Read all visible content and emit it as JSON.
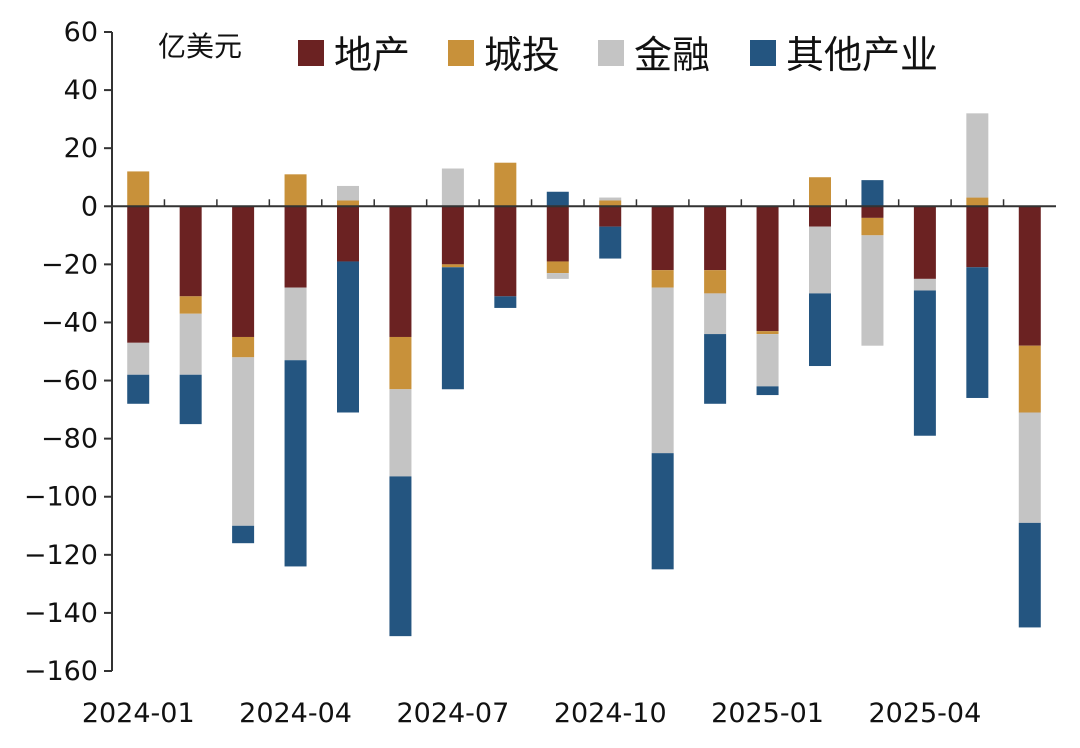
{
  "chart_data": {
    "type": "bar",
    "stacked": true,
    "unit_label": "亿美元",
    "x_tick_labels": [
      "2024-01",
      "2024-04",
      "2024-07",
      "2024-10",
      "2025-01",
      "2025-04"
    ],
    "categories": [
      "2024-01",
      "2024-02",
      "2024-03",
      "2024-04",
      "2024-05",
      "2024-06",
      "2024-07",
      "2024-08",
      "2024-09",
      "2024-10",
      "2024-11",
      "2024-12",
      "2025-01",
      "2025-02",
      "2025-03",
      "2025-04",
      "2025-05",
      "2025-06"
    ],
    "ylim": [
      -160,
      60
    ],
    "yticks": [
      60,
      40,
      20,
      0,
      -20,
      -40,
      -60,
      -80,
      -100,
      -120,
      -140,
      -160
    ],
    "grid": false,
    "legend_position": "top",
    "series": [
      {
        "name": "地产",
        "color": "#6b2222",
        "values": [
          -47,
          -31,
          -45,
          -28,
          -19,
          -45,
          -20,
          -31,
          -19,
          -7,
          -22,
          -22,
          -43,
          -7,
          -4,
          -25,
          -21,
          -48
        ]
      },
      {
        "name": "城投",
        "color": "#c8913a",
        "values": [
          12,
          -6,
          -7,
          11,
          2,
          -18,
          -1,
          15,
          -4,
          2,
          -6,
          -8,
          -1,
          10,
          -6,
          0,
          3,
          -23
        ]
      },
      {
        "name": "金融",
        "color": "#c4c4c4",
        "values": [
          -11,
          -21,
          -58,
          -25,
          5,
          -30,
          13,
          0,
          -2,
          1,
          -57,
          -14,
          -18,
          -23,
          -38,
          -4,
          29,
          -38
        ]
      },
      {
        "name": "其他产业",
        "color": "#245580",
        "values": [
          -10,
          -17,
          -6,
          -71,
          -52,
          -55,
          -42,
          -4,
          5,
          -11,
          -40,
          -24,
          -3,
          -25,
          9,
          -50,
          -45,
          -36
        ]
      }
    ]
  }
}
